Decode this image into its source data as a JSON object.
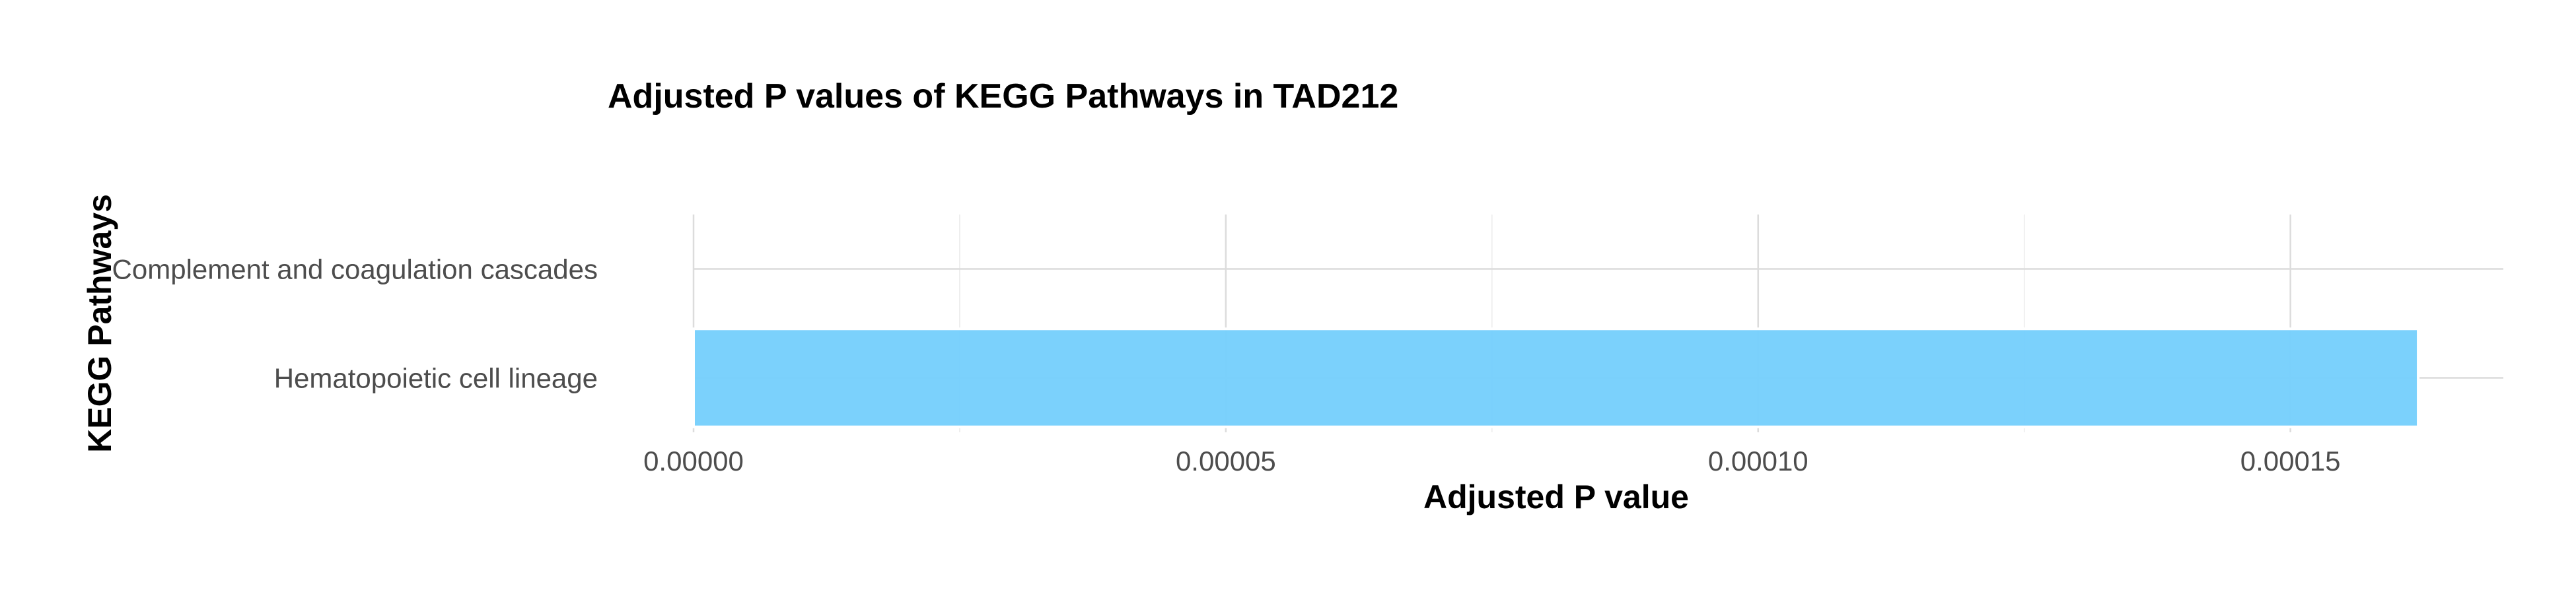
{
  "chart_data": {
    "type": "bar",
    "orientation": "horizontal",
    "title": "Adjusted P values of KEGG Pathways in TAD212",
    "xlabel": "Adjusted P value",
    "ylabel": "KEGG Pathways",
    "categories": [
      "Complement and coagulation cascades",
      "Hematopoietic cell lineage"
    ],
    "values": [
      0,
      0.000162
    ],
    "xlim": [
      0,
      0.00017
    ],
    "xticks": [
      "0.00000",
      "0.00005",
      "0.00010",
      "0.00015"
    ],
    "xtick_values": [
      0,
      5e-05,
      0.0001,
      0.00015
    ],
    "grid": true,
    "legend": "none",
    "bar_color": "#74cffc",
    "bar_edge_color": "#ffffff"
  }
}
